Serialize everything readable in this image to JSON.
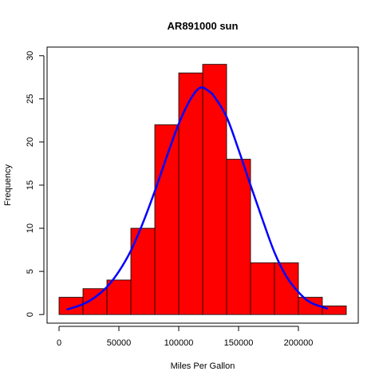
{
  "chart_data": {
    "type": "histogram",
    "title": "AR891000 sun",
    "xlabel": "Miles Per Gallon",
    "ylabel": "Frequency",
    "xlim": [
      -10000,
      250000
    ],
    "ylim": [
      -1,
      31
    ],
    "x_ticks": [
      0,
      50000,
      100000,
      150000,
      200000
    ],
    "x_tick_labels": [
      "0",
      "50000",
      "100000",
      "150000",
      "200000"
    ],
    "y_ticks": [
      0,
      5,
      10,
      15,
      20,
      25,
      30
    ],
    "y_tick_labels": [
      "0",
      "5",
      "10",
      "15",
      "20",
      "25",
      "30"
    ],
    "bin_width": 20000,
    "bins": [
      {
        "start": 0,
        "end": 20000,
        "count": 2
      },
      {
        "start": 20000,
        "end": 40000,
        "count": 3
      },
      {
        "start": 40000,
        "end": 60000,
        "count": 4
      },
      {
        "start": 60000,
        "end": 80000,
        "count": 10
      },
      {
        "start": 80000,
        "end": 100000,
        "count": 22
      },
      {
        "start": 100000,
        "end": 120000,
        "count": 28
      },
      {
        "start": 120000,
        "end": 140000,
        "count": 29
      },
      {
        "start": 140000,
        "end": 160000,
        "count": 18
      },
      {
        "start": 160000,
        "end": 180000,
        "count": 6
      },
      {
        "start": 180000,
        "end": 200000,
        "count": 6
      },
      {
        "start": 200000,
        "end": 220000,
        "count": 2
      },
      {
        "start": 220000,
        "end": 240000,
        "count": 1
      }
    ],
    "curve": {
      "type": "normal-density",
      "x": [
        7000,
        20000,
        30000,
        40000,
        50000,
        60000,
        70000,
        80000,
        90000,
        100000,
        110000,
        118000,
        125000,
        130000,
        140000,
        150000,
        160000,
        170000,
        180000,
        190000,
        200000,
        210000,
        224000
      ],
      "y": [
        0.6,
        1.2,
        2.0,
        3.2,
        5.0,
        7.4,
        10.6,
        14.3,
        18.3,
        22.1,
        25.0,
        26.3,
        25.9,
        25.2,
        22.9,
        19.1,
        15.0,
        11.0,
        7.2,
        4.4,
        2.6,
        1.4,
        0.7
      ]
    },
    "colors": {
      "bar_fill": "#ff0000",
      "bar_stroke": "#000000",
      "curve": "#0000ff",
      "axis": "#000000",
      "background": "#ffffff"
    },
    "grid": false,
    "legend": "none"
  }
}
